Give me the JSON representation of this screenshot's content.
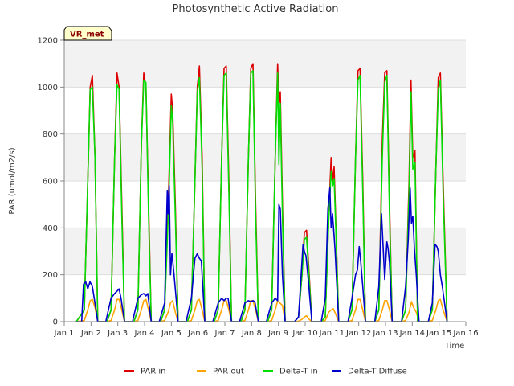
{
  "chart_data": {
    "type": "line",
    "title": "Photosynthetic Active Radiation",
    "xlabel": "Time",
    "ylabel": "PAR (umol/m2/s)",
    "badge": "VR_met",
    "xlim": [
      1,
      16
    ],
    "ylim": [
      0,
      1200
    ],
    "x_ticks": [
      1,
      2,
      3,
      4,
      5,
      6,
      7,
      8,
      9,
      10,
      11,
      12,
      13,
      14,
      15,
      16
    ],
    "x_tick_labels": [
      "Jan 1",
      "Jan 2",
      "Jan 3",
      "Jan 4",
      "Jan 5",
      "Jan 6",
      "Jan 7",
      "Jan 8",
      "Jan 9",
      "Jan 10",
      "Jan 11",
      "Jan 12",
      "Jan 13",
      "Jan 14",
      "Jan 15",
      "Jan 16"
    ],
    "y_ticks": [
      0,
      200,
      400,
      600,
      800,
      1000,
      1200
    ],
    "y_tick_labels": [
      "0",
      "200",
      "400",
      "600",
      "800",
      "1000",
      "1200"
    ],
    "grid": true,
    "background_bands": true,
    "legend_position": "bottom",
    "series": [
      {
        "name": "PAR in",
        "color": "#dd0000",
        "x": [
          1.45,
          1.75,
          1.88,
          1.97,
          2.05,
          2.15,
          2.25,
          2.6,
          2.75,
          2.88,
          2.97,
          3.05,
          3.15,
          3.25,
          3.6,
          3.75,
          3.88,
          3.97,
          4.05,
          4.15,
          4.25,
          4.6,
          4.75,
          4.9,
          5.0,
          5.05,
          5.15,
          5.25,
          5.6,
          5.75,
          5.88,
          5.97,
          6.05,
          6.15,
          6.25,
          6.6,
          6.75,
          6.88,
          6.97,
          7.05,
          7.15,
          7.25,
          7.6,
          7.75,
          7.88,
          7.97,
          8.05,
          8.15,
          8.25,
          8.6,
          8.75,
          8.88,
          8.97,
          9.02,
          9.07,
          9.15,
          9.25,
          9.6,
          9.75,
          9.88,
          9.97,
          10.05,
          10.15,
          10.25,
          10.6,
          10.75,
          10.88,
          10.97,
          11.03,
          11.08,
          11.15,
          11.25,
          11.6,
          11.75,
          11.88,
          11.97,
          12.05,
          12.15,
          12.25,
          12.6,
          12.75,
          12.88,
          12.97,
          13.05,
          13.15,
          13.25,
          13.6,
          13.75,
          13.88,
          13.95,
          14.02,
          14.1,
          14.2,
          14.6,
          14.75,
          14.88,
          14.97,
          15.05,
          15.15,
          15.3
        ],
        "y": [
          0,
          50,
          600,
          1000,
          1050,
          700,
          0,
          0,
          50,
          700,
          1060,
          1000,
          500,
          0,
          0,
          50,
          750,
          1060,
          1000,
          500,
          0,
          0,
          50,
          560,
          970,
          900,
          500,
          0,
          0,
          50,
          600,
          1000,
          1090,
          700,
          0,
          0,
          50,
          700,
          1080,
          1090,
          600,
          0,
          0,
          50,
          700,
          1080,
          1100,
          500,
          0,
          0,
          50,
          700,
          1100,
          930,
          980,
          500,
          0,
          0,
          20,
          200,
          380,
          390,
          200,
          0,
          0,
          20,
          450,
          700,
          600,
          660,
          400,
          0,
          0,
          50,
          700,
          1070,
          1080,
          600,
          0,
          0,
          50,
          770,
          1060,
          1070,
          500,
          0,
          0,
          50,
          600,
          1030,
          700,
          730,
          0,
          0,
          50,
          650,
          1040,
          1060,
          600,
          0
        ]
      },
      {
        "name": "PAR out",
        "color": "#ffa500",
        "x": [
          1.45,
          1.75,
          1.88,
          1.97,
          2.05,
          2.15,
          2.25,
          2.6,
          2.75,
          2.88,
          2.97,
          3.05,
          3.15,
          3.25,
          3.6,
          3.75,
          3.88,
          3.97,
          4.05,
          4.15,
          4.25,
          4.6,
          4.75,
          4.88,
          4.97,
          5.05,
          5.15,
          5.25,
          5.6,
          5.75,
          5.88,
          5.97,
          6.05,
          6.15,
          6.25,
          6.6,
          6.75,
          6.88,
          6.97,
          7.05,
          7.15,
          7.25,
          7.6,
          7.75,
          7.88,
          7.97,
          8.05,
          8.15,
          8.25,
          8.6,
          8.75,
          8.88,
          8.97,
          9.05,
          9.15,
          9.25,
          9.6,
          9.75,
          9.88,
          9.97,
          10.05,
          10.15,
          10.25,
          10.6,
          10.75,
          10.88,
          10.97,
          11.05,
          11.15,
          11.25,
          11.6,
          11.75,
          11.88,
          11.97,
          12.05,
          12.15,
          12.25,
          12.6,
          12.75,
          12.88,
          12.97,
          13.05,
          13.15,
          13.25,
          13.6,
          13.75,
          13.88,
          13.97,
          14.05,
          14.15,
          14.25,
          14.6,
          14.75,
          14.88,
          14.97,
          15.05,
          15.15,
          15.3
        ],
        "y": [
          0,
          5,
          50,
          90,
          95,
          60,
          0,
          0,
          5,
          50,
          95,
          95,
          50,
          0,
          0,
          5,
          50,
          90,
          95,
          50,
          0,
          0,
          5,
          40,
          80,
          90,
          40,
          0,
          0,
          5,
          50,
          90,
          95,
          50,
          0,
          0,
          5,
          50,
          90,
          90,
          50,
          0,
          0,
          5,
          50,
          90,
          90,
          50,
          0,
          0,
          5,
          50,
          90,
          80,
          70,
          0,
          0,
          2,
          10,
          20,
          25,
          10,
          0,
          0,
          5,
          40,
          50,
          55,
          30,
          0,
          0,
          5,
          50,
          95,
          95,
          50,
          0,
          0,
          5,
          50,
          90,
          90,
          50,
          0,
          0,
          5,
          40,
          85,
          60,
          40,
          0,
          0,
          5,
          50,
          90,
          95,
          50,
          0
        ]
      },
      {
        "name": "Delta-T in",
        "color": "#00dd00",
        "x": [
          1.45,
          1.75,
          1.88,
          1.97,
          2.05,
          2.15,
          2.25,
          2.6,
          2.75,
          2.88,
          2.97,
          3.05,
          3.15,
          3.25,
          3.6,
          3.75,
          3.88,
          3.97,
          4.05,
          4.15,
          4.25,
          4.6,
          4.75,
          4.9,
          5.0,
          5.05,
          5.15,
          5.25,
          5.6,
          5.75,
          5.88,
          5.97,
          6.05,
          6.15,
          6.25,
          6.6,
          6.75,
          6.88,
          6.97,
          7.05,
          7.15,
          7.25,
          7.6,
          7.75,
          7.88,
          7.97,
          8.05,
          8.15,
          8.25,
          8.6,
          8.75,
          8.88,
          8.97,
          9.02,
          9.07,
          9.15,
          9.25,
          9.6,
          9.75,
          9.88,
          9.97,
          10.05,
          10.15,
          10.25,
          10.6,
          10.75,
          10.88,
          10.97,
          11.03,
          11.08,
          11.15,
          11.25,
          11.6,
          11.75,
          11.88,
          11.97,
          12.05,
          12.15,
          12.25,
          12.6,
          12.75,
          12.88,
          12.97,
          13.05,
          13.15,
          13.25,
          13.6,
          13.75,
          13.88,
          13.95,
          14.02,
          14.1,
          14.2,
          14.6,
          14.75,
          14.88,
          14.97,
          15.05,
          15.15,
          15.3
        ],
        "y": [
          0,
          50,
          600,
          990,
          1000,
          700,
          0,
          0,
          50,
          700,
          1010,
          990,
          450,
          0,
          0,
          50,
          750,
          1030,
          1020,
          450,
          0,
          0,
          50,
          500,
          920,
          850,
          450,
          0,
          0,
          50,
          600,
          980,
          1040,
          650,
          0,
          0,
          50,
          700,
          1050,
          1060,
          550,
          0,
          0,
          50,
          700,
          1060,
          1070,
          450,
          0,
          0,
          50,
          700,
          1060,
          670,
          930,
          450,
          0,
          0,
          20,
          200,
          350,
          360,
          180,
          0,
          0,
          20,
          430,
          640,
          580,
          610,
          380,
          0,
          0,
          50,
          700,
          1030,
          1050,
          550,
          0,
          0,
          50,
          700,
          1020,
          1050,
          450,
          0,
          0,
          50,
          550,
          980,
          650,
          680,
          0,
          0,
          50,
          650,
          990,
          1030,
          550,
          0
        ]
      },
      {
        "name": "Delta-T Diffuse",
        "color": "#0000cc",
        "x": [
          1.45,
          1.65,
          1.72,
          1.8,
          1.88,
          1.96,
          2.05,
          2.12,
          2.25,
          2.55,
          2.75,
          2.88,
          2.97,
          3.05,
          3.12,
          3.25,
          3.55,
          3.75,
          3.88,
          3.97,
          4.05,
          4.12,
          4.25,
          4.55,
          4.75,
          4.85,
          4.88,
          4.92,
          4.97,
          5.02,
          5.06,
          5.1,
          5.18,
          5.25,
          5.55,
          5.75,
          5.88,
          5.97,
          6.05,
          6.12,
          6.25,
          6.55,
          6.75,
          6.88,
          6.97,
          7.05,
          7.12,
          7.25,
          7.55,
          7.75,
          7.88,
          7.97,
          8.05,
          8.12,
          8.25,
          8.55,
          8.75,
          8.88,
          8.97,
          9.02,
          9.07,
          9.15,
          9.25,
          9.6,
          9.75,
          9.85,
          9.92,
          9.97,
          10.03,
          10.1,
          10.25,
          10.6,
          10.75,
          10.85,
          10.92,
          10.97,
          11.02,
          11.07,
          11.12,
          11.25,
          11.6,
          11.75,
          11.88,
          11.95,
          12.02,
          12.08,
          12.15,
          12.25,
          12.6,
          12.75,
          12.85,
          12.92,
          12.97,
          13.05,
          13.1,
          13.15,
          13.25,
          13.6,
          13.75,
          13.85,
          13.92,
          13.97,
          14.02,
          14.08,
          14.15,
          14.25,
          14.6,
          14.75,
          14.85,
          14.92,
          14.97,
          15.05,
          15.12,
          15.3
        ],
        "y": [
          0,
          0,
          160,
          170,
          140,
          170,
          150,
          100,
          0,
          0,
          100,
          120,
          130,
          140,
          100,
          0,
          0,
          100,
          115,
          120,
          110,
          120,
          0,
          0,
          80,
          560,
          460,
          580,
          200,
          290,
          250,
          200,
          100,
          0,
          0,
          100,
          270,
          290,
          270,
          260,
          0,
          0,
          80,
          100,
          90,
          100,
          100,
          0,
          0,
          80,
          90,
          85,
          90,
          85,
          0,
          0,
          80,
          100,
          90,
          500,
          480,
          200,
          0,
          0,
          20,
          200,
          330,
          300,
          280,
          200,
          0,
          0,
          100,
          480,
          570,
          400,
          460,
          380,
          300,
          0,
          0,
          100,
          200,
          220,
          320,
          250,
          150,
          0,
          0,
          150,
          460,
          300,
          180,
          340,
          310,
          250,
          0,
          0,
          150,
          350,
          570,
          420,
          450,
          310,
          200,
          0,
          0,
          80,
          330,
          320,
          300,
          200,
          150,
          0
        ]
      }
    ]
  }
}
